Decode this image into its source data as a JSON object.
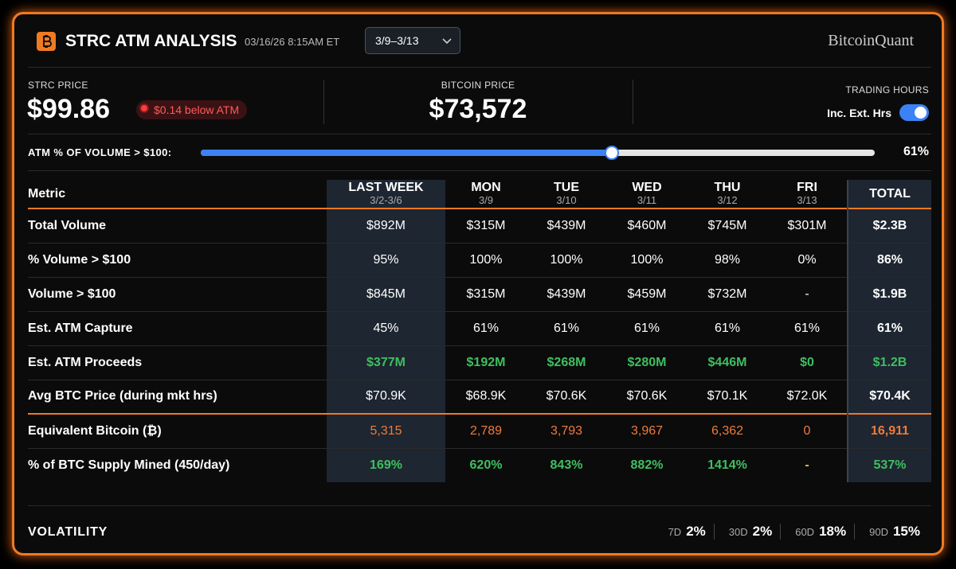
{
  "header": {
    "title": "STRC ATM ANALYSIS",
    "timestamp": "03/16/26 8:15AM ET",
    "range_select": "3/9–3/13",
    "brand": "BitcoinQuant"
  },
  "prices": {
    "strc_label": "STRC PRICE",
    "strc_value": "$99.86",
    "strc_badge": "$0.14 below ATM",
    "btc_label": "BITCOIN PRICE",
    "btc_value": "$73,572",
    "hours_label": "TRADING HOURS",
    "hours_toggle": "Inc. Ext. Hrs"
  },
  "slider": {
    "label": "ATM % OF VOLUME > $100:",
    "value": 61,
    "value_label": "61%"
  },
  "table": {
    "metric_header": "Metric",
    "columns": [
      {
        "name": "LAST WEEK",
        "dates": "3/2-3/6"
      },
      {
        "name": "MON",
        "dates": "3/9"
      },
      {
        "name": "TUE",
        "dates": "3/10"
      },
      {
        "name": "WED",
        "dates": "3/11"
      },
      {
        "name": "THU",
        "dates": "3/12"
      },
      {
        "name": "FRI",
        "dates": "3/13"
      },
      {
        "name": "TOTAL"
      }
    ],
    "rows": [
      {
        "label": "Total Volume",
        "cells": [
          "$892M",
          "$315M",
          "$439M",
          "$460M",
          "$745M",
          "$301M",
          "$2.3B"
        ]
      },
      {
        "label": "% Volume > $100",
        "cells": [
          "95%",
          "100%",
          "100%",
          "100%",
          "98%",
          "0%",
          "86%"
        ]
      },
      {
        "label": "Volume > $100",
        "cells": [
          "$845M",
          "$315M",
          "$439M",
          "$459M",
          "$732M",
          "-",
          "$1.9B"
        ]
      },
      {
        "label": "Est. ATM Capture",
        "cells": [
          "45%",
          "61%",
          "61%",
          "61%",
          "61%",
          "61%",
          "61%"
        ]
      },
      {
        "label": "Est. ATM Proceeds",
        "cells": [
          "$377M",
          "$192M",
          "$268M",
          "$280M",
          "$446M",
          "$0",
          "$1.2B"
        ]
      },
      {
        "label": "Avg BTC Price (during mkt hrs)",
        "cells": [
          "$70.9K",
          "$68.9K",
          "$70.6K",
          "$70.6K",
          "$70.1K",
          "$72.0K",
          "$70.4K"
        ]
      },
      {
        "label": "Equivalent Bitcoin (₿)",
        "cells": [
          "5,315",
          "2,789",
          "3,793",
          "3,967",
          "6,362",
          "0",
          "16,911"
        ]
      },
      {
        "label": "% of BTC Supply Mined (450/day)",
        "cells": [
          "169%",
          "620%",
          "843%",
          "882%",
          "1414%",
          "-",
          "537%"
        ]
      }
    ]
  },
  "volatility": {
    "label": "VOLATILITY",
    "items": [
      {
        "period": "7D",
        "value": "2%"
      },
      {
        "period": "30D",
        "value": "2%"
      },
      {
        "period": "60D",
        "value": "18%"
      },
      {
        "period": "90D",
        "value": "15%"
      }
    ]
  }
}
